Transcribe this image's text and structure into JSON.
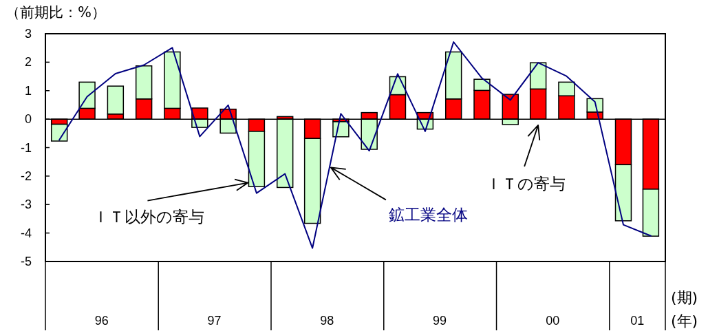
{
  "chart_data": {
    "type": "bar",
    "stacked": true,
    "ylabel": "（前期比：%）",
    "xlabel": "(期)\n(年)",
    "x": [
      "1996-02-15",
      "1996-05-15",
      "1996-08-15",
      "1996-11-15",
      "1997-02-15",
      "1997-05-15",
      "1997-08-15",
      "1997-11-15",
      "1998-02-15",
      "1998-05-15",
      "1998-08-15",
      "1998-11-15",
      "1999-02-15",
      "1999-05-15",
      "1999-08-15",
      "1999-11-15",
      "2000-02-15",
      "2000-05-15",
      "2000-08-15",
      "2000-11-15",
      "2001-02-15",
      "2001-05-15"
    ],
    "xlim": [
      "1996-01-01",
      "2001-07-01"
    ],
    "xticks": [
      {
        "value": "1996-01-01",
        "label": null
      },
      {
        "value": "1996-07-01",
        "label": "96"
      },
      {
        "value": "1997-01-01",
        "label": null
      },
      {
        "value": "1997-07-01",
        "label": "97"
      },
      {
        "value": "1998-01-01",
        "label": null
      },
      {
        "value": "1998-07-01",
        "label": "98"
      },
      {
        "value": "1999-01-01",
        "label": null
      },
      {
        "value": "1999-07-01",
        "label": "99"
      },
      {
        "value": "2000-01-01",
        "label": null
      },
      {
        "value": "2000-07-01",
        "label": "00"
      },
      {
        "value": "2001-01-01",
        "label": null
      },
      {
        "value": "2001-04-01",
        "label": "01"
      },
      {
        "value": "2001-07-01",
        "label": null
      }
    ],
    "ylim": [
      -5,
      3
    ],
    "yticks": [
      -5,
      -4,
      -3,
      -2,
      -1,
      0,
      1,
      2,
      3
    ],
    "series": [
      {
        "name": "ＩＴの寄与",
        "color": "#ff0000",
        "values": [
          -0.18,
          0.38,
          0.18,
          0.71,
          0.38,
          0.39,
          0.35,
          -0.43,
          0.09,
          -0.68,
          -0.09,
          0.23,
          0.86,
          0.23,
          0.71,
          1.01,
          0.87,
          1.06,
          0.82,
          0.25,
          -1.6,
          -2.46
        ]
      },
      {
        "name": "ＩＴ以外の寄与",
        "color": "#ccffcc",
        "values": [
          -0.59,
          0.92,
          0.98,
          1.16,
          1.98,
          -0.29,
          -0.49,
          -1.94,
          -2.4,
          -2.98,
          -0.53,
          -1.06,
          0.63,
          -0.35,
          1.65,
          0.39,
          -0.19,
          0.92,
          0.48,
          0.47,
          -1.97,
          -1.65
        ]
      },
      {
        "name": "鉱工業全体",
        "type": "line",
        "color": "#000080",
        "values": [
          -0.73,
          0.79,
          1.6,
          1.9,
          2.51,
          -0.61,
          0.49,
          -2.6,
          -1.92,
          -4.53,
          0.19,
          -1.11,
          1.59,
          -0.43,
          2.71,
          1.44,
          0.67,
          1.98,
          1.51,
          0.61,
          -3.71,
          -4.1
        ]
      }
    ]
  }
}
